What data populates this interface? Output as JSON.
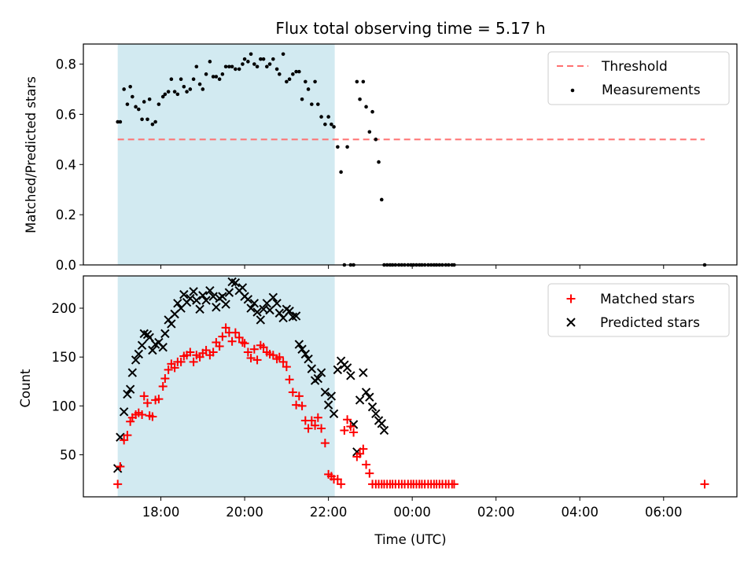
{
  "colors": {
    "shade": "#add8e6",
    "threshold": "#ff7070",
    "matched": "#ff0000",
    "predicted": "#000000",
    "measurement": "#000000"
  },
  "chart_data": [
    {
      "type": "scatter",
      "title": "Flux total observing time = 5.17 h",
      "xlabel": "",
      "ylabel": "Matched/Predicted stars",
      "xlim_hours": [
        16.15,
        31.75
      ],
      "ylim": [
        0,
        0.88
      ],
      "yticks": [
        0.0,
        0.2,
        0.4,
        0.6,
        0.8
      ],
      "ytick_labels": [
        "0.0",
        "0.2",
        "0.4",
        "0.6",
        "0.8"
      ],
      "shaded_interval_hours": [
        16.97,
        22.15
      ],
      "legend_position": "top-right",
      "series": [
        {
          "name": "Threshold",
          "style": "dashed-line",
          "x": [
            16.97,
            30.98
          ],
          "y": [
            0.5,
            0.5
          ]
        },
        {
          "name": "Measurements",
          "style": "dot",
          "x": [
            16.97,
            17.03,
            17.12,
            17.2,
            17.27,
            17.32,
            17.4,
            17.47,
            17.55,
            17.6,
            17.68,
            17.73,
            17.8,
            17.87,
            17.95,
            18.05,
            18.1,
            18.18,
            18.25,
            18.33,
            18.4,
            18.48,
            18.55,
            18.62,
            18.7,
            18.78,
            18.85,
            18.93,
            19.0,
            19.08,
            19.17,
            19.25,
            19.32,
            19.4,
            19.47,
            19.55,
            19.63,
            19.7,
            19.78,
            19.87,
            19.95,
            20.0,
            20.08,
            20.15,
            20.23,
            20.3,
            20.38,
            20.45,
            20.53,
            20.6,
            20.68,
            20.77,
            20.83,
            20.92,
            21.0,
            21.07,
            21.15,
            21.23,
            21.3,
            21.37,
            21.45,
            21.52,
            21.6,
            21.68,
            21.75,
            21.83,
            21.92,
            22.0,
            22.07,
            22.13,
            22.22,
            22.3,
            22.38,
            22.45,
            22.53,
            22.6,
            22.68,
            22.75,
            22.83,
            22.9,
            22.98,
            23.05,
            23.13,
            23.2,
            23.27,
            23.33,
            23.4,
            23.47,
            23.53,
            23.6,
            23.68,
            23.75,
            23.82,
            23.9,
            23.97,
            24.03,
            24.1,
            24.17,
            24.23,
            24.3,
            24.38,
            24.45,
            24.52,
            24.58,
            24.65,
            24.72,
            24.8,
            24.87,
            24.95,
            25.0,
            30.98
          ],
          "y": [
            0.57,
            0.57,
            0.7,
            0.64,
            0.71,
            0.67,
            0.63,
            0.62,
            0.58,
            0.65,
            0.58,
            0.66,
            0.56,
            0.57,
            0.64,
            0.67,
            0.68,
            0.69,
            0.74,
            0.69,
            0.68,
            0.74,
            0.71,
            0.69,
            0.7,
            0.74,
            0.79,
            0.72,
            0.7,
            0.76,
            0.81,
            0.75,
            0.75,
            0.74,
            0.76,
            0.79,
            0.79,
            0.79,
            0.78,
            0.78,
            0.8,
            0.82,
            0.81,
            0.84,
            0.8,
            0.79,
            0.82,
            0.82,
            0.79,
            0.8,
            0.82,
            0.78,
            0.76,
            0.84,
            0.73,
            0.74,
            0.76,
            0.77,
            0.77,
            0.66,
            0.73,
            0.7,
            0.64,
            0.73,
            0.64,
            0.59,
            0.56,
            0.59,
            0.56,
            0.55,
            0.47,
            0.37,
            0.0,
            0.47,
            0.0,
            0.0,
            0.73,
            0.66,
            0.73,
            0.63,
            0.53,
            0.61,
            0.5,
            0.41,
            0.26,
            0.0,
            0.0,
            0.0,
            0.0,
            0.0,
            0.0,
            0.0,
            0.0,
            0.0,
            0.0,
            0.0,
            0.0,
            0.0,
            0.0,
            0.0,
            0.0,
            0.0,
            0.0,
            0.0,
            0.0,
            0.0,
            0.0,
            0.0,
            0.0,
            0.0,
            0.0
          ]
        }
      ]
    },
    {
      "type": "scatter",
      "title": "",
      "xlabel": "Time (UTC)",
      "ylabel": "Count",
      "xlim_hours": [
        16.15,
        31.75
      ],
      "ylim": [
        7,
        233
      ],
      "yticks": [
        50,
        100,
        150,
        200
      ],
      "ytick_labels": [
        "50",
        "100",
        "150",
        "200"
      ],
      "xticks_hours": [
        18,
        20,
        22,
        24,
        26,
        28,
        30
      ],
      "xtick_labels": [
        "18:00",
        "20:00",
        "22:00",
        "00:00",
        "02:00",
        "04:00",
        "06:00"
      ],
      "shaded_interval_hours": [
        16.97,
        22.15
      ],
      "legend_position": "top-right",
      "series": [
        {
          "name": "Matched stars",
          "marker": "plus",
          "x": [
            16.97,
            17.03,
            17.12,
            17.2,
            17.27,
            17.32,
            17.4,
            17.47,
            17.55,
            17.6,
            17.68,
            17.73,
            17.8,
            17.87,
            17.95,
            18.05,
            18.1,
            18.18,
            18.25,
            18.33,
            18.4,
            18.48,
            18.55,
            18.62,
            18.7,
            18.78,
            18.85,
            18.93,
            19.0,
            19.08,
            19.17,
            19.25,
            19.32,
            19.4,
            19.47,
            19.55,
            19.63,
            19.7,
            19.78,
            19.87,
            19.95,
            20.0,
            20.08,
            20.15,
            20.23,
            20.3,
            20.38,
            20.45,
            20.53,
            20.6,
            20.68,
            20.77,
            20.83,
            20.92,
            21.0,
            21.07,
            21.15,
            21.23,
            21.3,
            21.37,
            21.45,
            21.52,
            21.6,
            21.68,
            21.75,
            21.83,
            21.92,
            22.0,
            22.07,
            22.13,
            22.22,
            22.3,
            22.38,
            22.45,
            22.53,
            22.6,
            22.68,
            22.75,
            22.83,
            22.9,
            22.98,
            23.05,
            23.13,
            23.2,
            23.27,
            23.33,
            23.4,
            23.47,
            23.53,
            23.6,
            23.68,
            23.75,
            23.82,
            23.9,
            23.97,
            24.03,
            24.1,
            24.17,
            24.23,
            24.3,
            24.38,
            24.45,
            24.52,
            24.58,
            24.65,
            24.72,
            24.8,
            24.87,
            24.95,
            25.0,
            30.98
          ],
          "y": [
            20,
            38,
            65,
            70,
            84,
            88,
            91,
            93,
            91,
            110,
            103,
            90,
            89,
            106,
            107,
            120,
            128,
            137,
            143,
            139,
            145,
            145,
            151,
            152,
            155,
            145,
            152,
            150,
            154,
            157,
            152,
            155,
            165,
            161,
            171,
            180,
            175,
            166,
            175,
            170,
            165,
            164,
            155,
            149,
            158,
            147,
            162,
            160,
            155,
            153,
            152,
            148,
            150,
            145,
            140,
            127,
            114,
            101,
            110,
            100,
            85,
            77,
            85,
            80,
            88,
            77,
            62,
            30,
            28,
            25,
            25,
            20,
            75,
            86,
            79,
            73,
            48,
            51,
            56,
            40,
            31,
            20,
            20,
            20,
            20,
            20,
            20,
            20,
            20,
            20,
            20,
            20,
            20,
            20,
            20,
            20,
            20,
            20,
            20,
            20,
            20,
            20,
            20,
            20,
            20,
            20,
            20,
            20,
            20,
            20,
            20
          ]
        },
        {
          "name": "Predicted stars",
          "marker": "x",
          "x": [
            16.97,
            17.03,
            17.12,
            17.2,
            17.27,
            17.32,
            17.4,
            17.47,
            17.55,
            17.6,
            17.68,
            17.73,
            17.8,
            17.87,
            17.95,
            18.05,
            18.1,
            18.18,
            18.25,
            18.33,
            18.4,
            18.48,
            18.55,
            18.62,
            18.7,
            18.78,
            18.85,
            18.93,
            19.0,
            19.08,
            19.17,
            19.25,
            19.32,
            19.4,
            19.47,
            19.55,
            19.63,
            19.7,
            19.78,
            19.87,
            19.95,
            20.0,
            20.08,
            20.15,
            20.23,
            20.3,
            20.38,
            20.45,
            20.53,
            20.6,
            20.68,
            20.77,
            20.83,
            20.92,
            21.0,
            21.07,
            21.15,
            21.23,
            21.3,
            21.37,
            21.45,
            21.52,
            21.6,
            21.68,
            21.75,
            21.83,
            21.92,
            22.0,
            22.07,
            22.13,
            22.22,
            22.3,
            22.38,
            22.45,
            22.53,
            22.6,
            22.68,
            22.75,
            22.83,
            22.9,
            22.98,
            23.05,
            23.13,
            23.2,
            23.27,
            23.33
          ],
          "y": [
            36,
            68,
            94,
            112,
            117,
            134,
            147,
            153,
            162,
            174,
            173,
            170,
            157,
            163,
            165,
            160,
            174,
            188,
            184,
            194,
            205,
            200,
            214,
            206,
            210,
            217,
            208,
            199,
            213,
            208,
            218,
            212,
            201,
            210,
            212,
            204,
            216,
            227,
            226,
            218,
            221,
            212,
            209,
            200,
            205,
            196,
            188,
            199,
            205,
            198,
            211,
            205,
            195,
            190,
            199,
            197,
            191,
            192,
            163,
            158,
            153,
            148,
            138,
            126,
            128,
            134,
            114,
            101,
            110,
            92,
            137,
            146,
            142,
            139,
            131,
            81,
            53,
            106,
            134,
            114,
            109,
            99,
            92,
            85,
            82,
            75
          ]
        }
      ]
    }
  ]
}
